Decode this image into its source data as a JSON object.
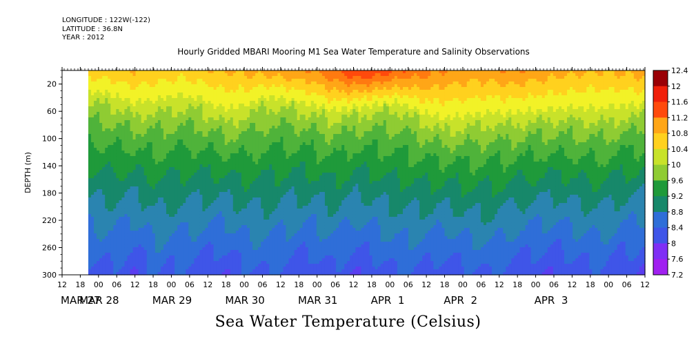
{
  "header": {
    "longitude": "LONGITUDE : 122W(-122)",
    "latitude": "LATITUDE : 36.8N",
    "year": "YEAR : 2012"
  },
  "chart_data": {
    "type": "heatmap",
    "title": "Hourly Gridded MBARI Mooring M1 Sea Water Temperature and Salinity Observations",
    "caption": "Sea Water Temperature (Celsius)",
    "ylabel": "DEPTH (m)",
    "y_reversed": true,
    "ylim": [
      300,
      0
    ],
    "y_ticks": [
      20,
      60,
      100,
      140,
      180,
      220,
      260,
      300
    ],
    "x_hour_ticks": [
      "12",
      "18",
      "00",
      "06",
      "12",
      "18",
      "00",
      "06",
      "12",
      "18",
      "00",
      "06",
      "12",
      "18",
      "00",
      "06",
      "12",
      "18",
      "00",
      "06",
      "12",
      "18",
      "00",
      "06",
      "12",
      "18",
      "00",
      "06",
      "12",
      "18",
      "00",
      "06",
      "12"
    ],
    "x_day_labels": [
      "MAR 27",
      "MAR 28",
      "MAR 29",
      "MAR 30",
      "MAR 31",
      "APR  1",
      "APR  2",
      "APR  3"
    ],
    "colorbar_levels": [
      7.2,
      7.6,
      8,
      8.4,
      8.8,
      9.2,
      9.6,
      10,
      10.4,
      10.8,
      11.2,
      11.6,
      12,
      12.4
    ],
    "colorbar_labels": [
      "12.4",
      "12",
      "11.6",
      "11.2",
      "10.8",
      "10.4",
      "10",
      "9.6",
      "9.2",
      "8.8",
      "8.4",
      "8",
      "7.6",
      "7.2"
    ],
    "colors": [
      "#a020f0",
      "#7f2ff5",
      "#5a3ef0",
      "#3f55e8",
      "#2f6ed8",
      "#2a84b0",
      "#17886a",
      "#1f9a3a",
      "#4fb33a",
      "#8fcc33",
      "#c8e22a",
      "#f2f227",
      "#ffd11e",
      "#ffa617",
      "#ff7a10",
      "#ff4a0c",
      "#f0200a",
      "#c80008",
      "#9a0006"
    ],
    "surface_temp_profile": [
      11.0,
      11.1,
      11.2,
      11.1,
      11.0,
      11.1,
      11.2,
      11.3,
      11.4,
      11.5,
      11.6,
      12.0,
      12.4,
      12.3,
      12.0,
      11.8,
      11.6,
      11.5,
      11.5,
      11.6,
      11.5,
      11.4,
      11.3,
      11.2,
      11.3,
      11.4
    ],
    "thermocline_depth_profile": [
      40,
      45,
      60,
      55,
      48,
      52,
      70,
      62,
      45,
      50,
      58,
      66,
      60,
      55,
      52,
      70,
      82,
      78,
      72,
      74,
      70,
      68,
      66,
      70,
      64,
      60
    ],
    "deep_temp_profile": [
      7.4,
      7.5,
      7.2,
      7.6,
      7.5,
      7.4,
      7.2,
      7.5,
      7.6,
      7.4,
      7.3,
      7.5,
      7.2,
      7.4,
      7.6,
      7.5,
      7.3,
      7.5,
      7.6,
      7.4,
      7.3,
      7.2,
      7.4,
      7.5,
      7.3,
      7.2
    ],
    "data_start": "MAR 27 18",
    "data_end": "APR 3 12"
  }
}
